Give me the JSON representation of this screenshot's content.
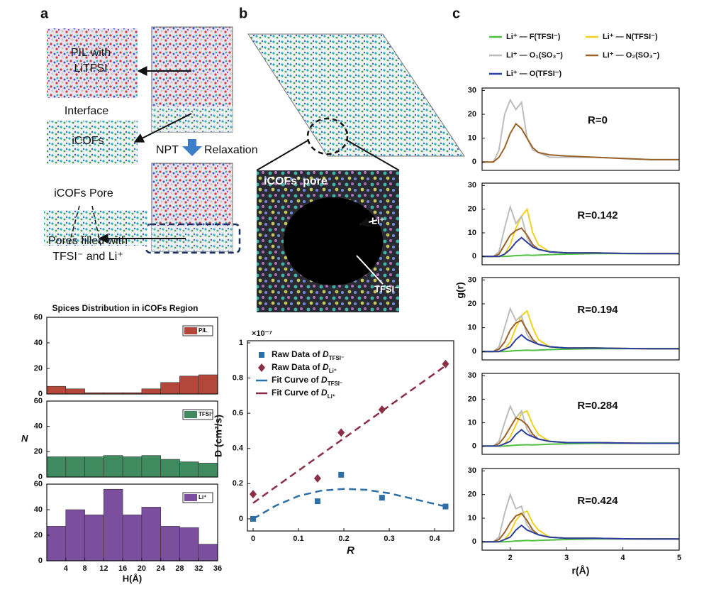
{
  "panel_labels": [
    "a",
    "b",
    "c"
  ],
  "panel_a": {
    "pil_line1": "PIL with",
    "pil_line2": "LiTFSI",
    "interface": "Interface",
    "icofs": "iCOFs",
    "npt": "NPT",
    "relaxation": "Relaxation",
    "pore": "iCOFs Pore",
    "filled_line1": "Pores filled with",
    "filled_line2": "TFSI⁻ and Li⁺"
  },
  "panel_b": {
    "inset_title": "iCOFs’ pore",
    "li": "Li⁺",
    "tfsi": "TFSI⁻"
  },
  "chart_data": [
    {
      "type": "histogram",
      "title": "Spices Distribution in iCOFs Region",
      "legend": "PIL",
      "color": "#b5463a",
      "bins": [
        0,
        4,
        8,
        12,
        16,
        20,
        24,
        28,
        32,
        36
      ],
      "values": [
        6,
        4,
        1,
        1,
        1,
        4,
        9,
        14,
        15
      ],
      "xlim": [
        0,
        36
      ],
      "ylim": [
        0,
        60
      ],
      "yticks": [
        0,
        20,
        40,
        60
      ]
    },
    {
      "type": "histogram",
      "legend": "TFSI⁻",
      "ylabel": "N",
      "color": "#3f8a5f",
      "bins": [
        0,
        4,
        8,
        12,
        16,
        20,
        24,
        28,
        32,
        36
      ],
      "values": [
        16,
        16,
        16,
        17,
        16,
        17,
        14,
        12,
        11
      ],
      "xlim": [
        0,
        36
      ],
      "ylim": [
        0,
        60
      ],
      "yticks": [
        0,
        20,
        40,
        60
      ]
    },
    {
      "type": "histogram",
      "legend": "Li⁺",
      "xlabel": "H(Å)",
      "color": "#7c4f9e",
      "bins": [
        0,
        4,
        8,
        12,
        16,
        20,
        24,
        28,
        32,
        36
      ],
      "values": [
        27,
        40,
        36,
        56,
        36,
        42,
        27,
        26,
        13
      ],
      "xlim": [
        0,
        36
      ],
      "ylim": [
        0,
        60
      ],
      "yticks": [
        0,
        20,
        40,
        60
      ],
      "xticks": [
        4,
        8,
        12,
        16,
        20,
        24,
        28,
        32,
        36
      ]
    },
    {
      "type": "scatter",
      "xlabel": "R",
      "ylabel": "D (cm²/s)",
      "scale_label": "×10⁻⁷",
      "xlim": [
        -0.0125,
        0.442
      ],
      "ylim": [
        -0.069,
        1.012
      ],
      "xticks": [
        0,
        0.1,
        0.2,
        0.3,
        0.4
      ],
      "yticks": [
        0,
        0.2,
        0.4,
        0.6,
        0.8,
        1
      ],
      "series": [
        {
          "name": "Raw Data of ",
          "symbol": "D",
          "subscript": "TFSI⁻",
          "marker": "square",
          "color": "#2e6ea6",
          "x": [
            0,
            0.142,
            0.194,
            0.284,
            0.424
          ],
          "values": [
            0,
            0.1,
            0.25,
            0.12,
            0.07
          ]
        },
        {
          "name": "Raw Data of ",
          "symbol": "D",
          "subscript": "Li⁺",
          "marker": "diamond",
          "color": "#8b2f45",
          "x": [
            0,
            0.142,
            0.194,
            0.284,
            0.424
          ],
          "values": [
            0.14,
            0.23,
            0.49,
            0.62,
            0.88
          ]
        },
        {
          "name": "Fit Curve of ",
          "symbol": "D",
          "subscript": "TFSI⁻",
          "marker": "dash",
          "color": "#2e6ea6",
          "x": [
            0,
            0.05,
            0.1,
            0.15,
            0.2,
            0.25,
            0.3,
            0.35,
            0.424
          ],
          "values": [
            0,
            0.075,
            0.13,
            0.16,
            0.17,
            0.165,
            0.145,
            0.115,
            0.07
          ]
        },
        {
          "name": "Fit Curve of ",
          "symbol": "D",
          "subscript": "Li⁺",
          "marker": "dash",
          "color": "#8b2f45",
          "x": [
            0,
            0.424
          ],
          "values": [
            0.09,
            0.87
          ]
        }
      ]
    },
    {
      "type": "line",
      "title": "R=0",
      "xlim": [
        1.5,
        5
      ],
      "ylim": [
        -3.5,
        31
      ],
      "yticks": [
        0,
        10,
        20,
        30
      ],
      "x": [
        1.5,
        1.7,
        1.8,
        1.9,
        2.0,
        2.1,
        2.2,
        2.3,
        2.4,
        2.5,
        2.7,
        3.0,
        3.5,
        4.0,
        4.5,
        5.0
      ],
      "series": [
        {
          "name": "Li⁺ — O₁(SO₃⁻)",
          "color": "#bdbdbd",
          "values": [
            0,
            0,
            5,
            20,
            26,
            22,
            25,
            10,
            5,
            4,
            2,
            2,
            2,
            1.5,
            1,
            1
          ]
        },
        {
          "name": "Li⁺ — O₂(SO₃⁻)",
          "color": "#9a6228",
          "values": [
            0,
            0,
            2,
            6,
            12,
            16,
            14,
            10,
            6,
            4,
            3,
            2.5,
            2,
            1.5,
            1,
            1
          ]
        }
      ]
    },
    {
      "type": "line",
      "title": "R=0.142",
      "xlim": [
        1.5,
        5
      ],
      "ylim": [
        -3.5,
        31
      ],
      "yticks": [
        0,
        10,
        20,
        30
      ],
      "x": [
        1.5,
        1.7,
        1.8,
        1.9,
        2.0,
        2.1,
        2.2,
        2.3,
        2.4,
        2.5,
        2.7,
        3.0,
        3.5,
        4.0,
        4.5,
        5.0
      ],
      "series": [
        {
          "name": "Li⁺ — F(TFSI⁻)",
          "color": "#4fbf3f",
          "values": [
            0,
            0,
            0,
            0,
            0.2,
            0.4,
            0.5,
            0.6,
            0.5,
            0.6,
            0.8,
            1,
            1.2,
            1.2,
            1.3,
            1.3
          ]
        },
        {
          "name": "Li⁺ — N(TFSI⁻)",
          "color": "#f2d21e",
          "values": [
            0,
            0,
            0,
            1,
            5,
            12,
            17,
            20,
            10,
            5,
            2,
            1.5,
            1.5,
            1.3,
            1.2,
            1.2
          ]
        },
        {
          "name": "Li⁺ — O₁(SO₃⁻)",
          "color": "#bdbdbd",
          "values": [
            0,
            0,
            2,
            12,
            21,
            14,
            17,
            8,
            4,
            3,
            2,
            1.5,
            1.5,
            1.3,
            1.2,
            1.2
          ]
        },
        {
          "name": "Li⁺ — O₂(SO₃⁻)",
          "color": "#9a6228",
          "values": [
            0,
            0,
            1,
            5,
            9,
            11,
            12,
            9,
            5,
            3,
            2,
            1.5,
            1.5,
            1.3,
            1.2,
            1.2
          ]
        },
        {
          "name": "Li⁺ — O(TFSI⁻)",
          "color": "#2b3f9e",
          "values": [
            0,
            0,
            0,
            1,
            3,
            6,
            8,
            6,
            4,
            3,
            2,
            1.5,
            1.5,
            1.3,
            1.2,
            1.2
          ]
        }
      ]
    },
    {
      "type": "line",
      "title": "R=0.194",
      "ylabel": "g(r)",
      "xlim": [
        1.5,
        5
      ],
      "ylim": [
        -3.5,
        31
      ],
      "yticks": [
        0,
        10,
        20,
        30
      ],
      "x": [
        1.5,
        1.7,
        1.8,
        1.9,
        2.0,
        2.1,
        2.2,
        2.3,
        2.4,
        2.5,
        2.7,
        3.0,
        3.5,
        4.0,
        4.5,
        5.0
      ],
      "series": [
        {
          "name": "Li⁺ — F(TFSI⁻)",
          "color": "#4fbf3f",
          "values": [
            0,
            0,
            0,
            0,
            0.2,
            0.4,
            0.5,
            0.6,
            0.5,
            0.6,
            0.8,
            1,
            1.2,
            1.2,
            1.3,
            1.3
          ]
        },
        {
          "name": "Li⁺ — N(TFSI⁻)",
          "color": "#f2d21e",
          "values": [
            0,
            0,
            0,
            1,
            4,
            10,
            15,
            17,
            10,
            5,
            2,
            1.5,
            1.5,
            1.3,
            1.2,
            1.2
          ]
        },
        {
          "name": "Li⁺ — O₁(SO₃⁻)",
          "color": "#bdbdbd",
          "values": [
            0,
            0,
            2,
            10,
            18,
            13,
            15,
            7,
            4,
            3,
            2,
            1.5,
            1.5,
            1.3,
            1.2,
            1.2
          ]
        },
        {
          "name": "Li⁺ — O₂(SO₃⁻)",
          "color": "#9a6228",
          "values": [
            0,
            0,
            1,
            4,
            9,
            12,
            13,
            9,
            5,
            3,
            2,
            1.5,
            1.5,
            1.3,
            1.2,
            1.2
          ]
        },
        {
          "name": "Li⁺ — O(TFSI⁻)",
          "color": "#2b3f9e",
          "values": [
            0,
            0,
            0,
            1,
            2,
            5,
            7,
            5,
            4,
            3,
            2,
            1.5,
            1.5,
            1.3,
            1.2,
            1.2
          ]
        }
      ]
    },
    {
      "type": "line",
      "title": "R=0.284",
      "xlim": [
        1.5,
        5
      ],
      "ylim": [
        -3.5,
        31
      ],
      "yticks": [
        0,
        10,
        20,
        30
      ],
      "x": [
        1.5,
        1.7,
        1.8,
        1.9,
        2.0,
        2.1,
        2.2,
        2.3,
        2.4,
        2.5,
        2.7,
        3.0,
        3.5,
        4.0,
        4.5,
        5.0
      ],
      "series": [
        {
          "name": "Li⁺ — F(TFSI⁻)",
          "color": "#4fbf3f",
          "values": [
            0,
            0,
            0,
            0,
            0.2,
            0.4,
            0.5,
            0.6,
            0.5,
            0.6,
            0.8,
            1,
            1.2,
            1.2,
            1.3,
            1.3
          ]
        },
        {
          "name": "Li⁺ — N(TFSI⁻)",
          "color": "#f2d21e",
          "values": [
            0,
            0,
            0,
            1,
            4,
            9,
            14,
            15,
            9,
            5,
            2,
            1.5,
            1.5,
            1.3,
            1.2,
            1.2
          ]
        },
        {
          "name": "Li⁺ — O₁(SO₃⁻)",
          "color": "#bdbdbd",
          "values": [
            0,
            0,
            2,
            10,
            17,
            12,
            15,
            7,
            4,
            3,
            2,
            1.5,
            1.5,
            1.3,
            1.2,
            1.2
          ]
        },
        {
          "name": "Li⁺ — O₂(SO₃⁻)",
          "color": "#9a6228",
          "values": [
            0,
            0,
            1,
            4,
            8,
            12,
            11,
            9,
            5,
            3,
            2,
            1.5,
            1.5,
            1.3,
            1.2,
            1.2
          ]
        },
        {
          "name": "Li⁺ — O(TFSI⁻)",
          "color": "#2b3f9e",
          "values": [
            0,
            0,
            0,
            1,
            2,
            5,
            7,
            5,
            4,
            3,
            2,
            1.5,
            1.5,
            1.3,
            1.2,
            1.2
          ]
        }
      ]
    },
    {
      "type": "line",
      "title": "R=0.424",
      "xlabel": "r(Å)",
      "xlim": [
        1.5,
        5
      ],
      "ylim": [
        -3.5,
        31
      ],
      "yticks": [
        0,
        10,
        20,
        30
      ],
      "xticks": [
        2,
        3,
        4,
        5
      ],
      "x": [
        1.5,
        1.7,
        1.8,
        1.9,
        2.0,
        2.1,
        2.2,
        2.3,
        2.4,
        2.5,
        2.7,
        3.0,
        3.5,
        4.0,
        4.5,
        5.0
      ],
      "series": [
        {
          "name": "Li⁺ — F(TFSI⁻)",
          "color": "#4fbf3f",
          "values": [
            0,
            0,
            0,
            0,
            0.2,
            0.4,
            0.5,
            0.6,
            0.5,
            0.6,
            0.8,
            1,
            1.2,
            1.2,
            1.3,
            1.3
          ]
        },
        {
          "name": "Li⁺ — N(TFSI⁻)",
          "color": "#f2d21e",
          "values": [
            0,
            0,
            0,
            1,
            4,
            9,
            12,
            13,
            8,
            5,
            2,
            1.5,
            1.5,
            1.3,
            1.2,
            1.2
          ]
        },
        {
          "name": "Li⁺ — O₁(SO₃⁻)",
          "color": "#bdbdbd",
          "values": [
            0,
            0,
            2,
            12,
            20,
            14,
            15,
            7,
            4,
            3,
            2,
            1.5,
            1.5,
            1.3,
            1.2,
            1.2
          ]
        },
        {
          "name": "Li⁺ — O₂(SO₃⁻)",
          "color": "#9a6228",
          "values": [
            0,
            0,
            1,
            4,
            8,
            11,
            12,
            9,
            5,
            3,
            2,
            1.5,
            1.5,
            1.3,
            1.2,
            1.2
          ]
        },
        {
          "name": "Li⁺ — O(TFSI⁻)",
          "color": "#2b3f9e",
          "values": [
            0,
            0,
            0,
            1,
            2,
            5,
            7,
            5,
            4,
            3,
            2,
            1.5,
            1.5,
            1.3,
            1.2,
            1.2
          ]
        }
      ]
    }
  ]
}
